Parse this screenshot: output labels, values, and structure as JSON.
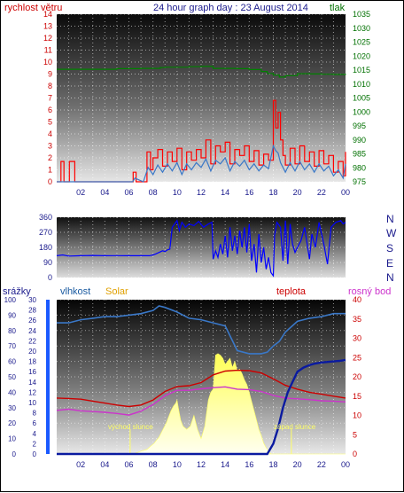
{
  "chart_data": [
    {
      "type": "line",
      "title": "24 hour graph day : 23 August 2014",
      "ylabel_left": "rychlost větru",
      "ylabel_right": "tlak",
      "ylim_left": [
        0,
        14
      ],
      "ylim_right": [
        975,
        1035
      ],
      "yticks_left": [
        "0",
        "1",
        "2",
        "3",
        "4",
        "5",
        "6",
        "7",
        "8",
        "9",
        "10",
        "11",
        "12",
        "13",
        "14"
      ],
      "yticks_right": [
        "975",
        "980",
        "985",
        "990",
        "995",
        "1000",
        "1005",
        "1010",
        "1015",
        "1020",
        "1025",
        "1030",
        "1035"
      ],
      "xticks": [
        "02",
        "04",
        "06",
        "08",
        "10",
        "12",
        "14",
        "16",
        "18",
        "20",
        "22",
        "00"
      ],
      "grid": true,
      "colors": {
        "wind": "#ff0000",
        "wind_avg": "#3a78c8",
        "pressure": "#008000"
      },
      "series": [
        {
          "key": "gust",
          "x": [
            0,
            0.3,
            0.35,
            0.6,
            0.65,
            1.0,
            1.05,
            1.5,
            1.55,
            6.3,
            6.35,
            6.6,
            6.65,
            7.2,
            7.5,
            7.8,
            8.0,
            8.4,
            8.8,
            9.2,
            9.6,
            10.0,
            10.4,
            10.8,
            11.2,
            11.6,
            12.0,
            12.4,
            12.8,
            13.2,
            13.6,
            14.0,
            14.4,
            14.8,
            15.2,
            15.6,
            16.0,
            16.4,
            16.8,
            17.2,
            17.6,
            18.0,
            18.2,
            18.4,
            18.6,
            18.8,
            19.0,
            19.4,
            19.8,
            20.2,
            20.6,
            21.0,
            21.4,
            21.8,
            22.2,
            22.6,
            23.0,
            23.4,
            23.8,
            24.0
          ],
          "values": [
            0,
            0,
            1.7,
            0,
            0,
            0,
            1.7,
            0,
            0,
            0,
            0.8,
            0,
            0,
            0,
            2.5,
            1,
            2,
            2.7,
            1.3,
            2.5,
            1.7,
            2.8,
            1,
            2.5,
            1.8,
            2.7,
            2,
            3.5,
            1.5,
            3,
            2.5,
            3.3,
            1.5,
            2.7,
            2.2,
            3,
            1.7,
            2.6,
            1.4,
            2.3,
            1.8,
            6.8,
            4.5,
            5.8,
            3.5,
            2.2,
            1.4,
            2.8,
            1.5,
            3,
            1.7,
            2.5,
            1.3,
            2.6,
            1.5,
            2.2,
            0.8,
            1.7,
            0.5,
            2.5
          ]
        },
        {
          "key": "average",
          "x": [
            0,
            1,
            2,
            6.3,
            6.5,
            7.2,
            7.6,
            8.0,
            8.4,
            8.8,
            9.2,
            9.6,
            10.0,
            10.4,
            10.8,
            11.2,
            11.6,
            12.0,
            12.4,
            12.8,
            13.2,
            13.6,
            14.0,
            14.4,
            14.8,
            15.2,
            15.6,
            16.0,
            16.4,
            16.8,
            17.2,
            17.6,
            18.0,
            18.2,
            18.4,
            18.6,
            18.8,
            19.0,
            19.4,
            19.8,
            20.2,
            20.6,
            21.0,
            21.4,
            21.8,
            22.2,
            22.6,
            23.0,
            23.4,
            23.8,
            24.0
          ],
          "values": [
            0,
            0,
            0,
            0,
            0.3,
            0,
            1.2,
            0.6,
            1.4,
            0.8,
            1.5,
            0.9,
            1.6,
            0.6,
            1.5,
            1,
            1.6,
            1.2,
            1.9,
            0.9,
            1.8,
            1.5,
            2,
            0.9,
            1.7,
            1.3,
            1.8,
            1,
            1.5,
            0.9,
            1.4,
            1.1,
            3,
            2.6,
            2.4,
            1.6,
            1.2,
            0.8,
            1.6,
            0.9,
            1.7,
            1,
            1.5,
            0.8,
            1.5,
            0.9,
            1.3,
            0.5,
            1,
            0.3,
            1.5
          ]
        },
        {
          "key": "pressure",
          "x": [
            0,
            4,
            5,
            6,
            7,
            8,
            8.6,
            9,
            10,
            11,
            12,
            12.5,
            13,
            15,
            16,
            17,
            17.5,
            18,
            18.5,
            19,
            20,
            21,
            22,
            23,
            24
          ],
          "values": [
            1015.3,
            1015.3,
            1015.5,
            1015.5,
            1015.6,
            1015.6,
            1015.9,
            1016,
            1016,
            1016.2,
            1016.3,
            1016.3,
            1015.6,
            1015.5,
            1015.2,
            1014.5,
            1013.8,
            1013.2,
            1012.5,
            1013,
            1013.7,
            1013.6,
            1013.5,
            1013.4,
            1013.3
          ]
        }
      ]
    },
    {
      "type": "line",
      "ylim": [
        0,
        360
      ],
      "yticks": [
        "0",
        "90",
        "180",
        "270",
        "360"
      ],
      "compass_labels": [
        "N",
        "W",
        "S",
        "E",
        "N"
      ],
      "xticks": [
        "02",
        "04",
        "06",
        "08",
        "10",
        "12",
        "14",
        "16",
        "18",
        "20",
        "22",
        "00"
      ],
      "grid": true,
      "colors": {
        "direction": "#0000ff"
      },
      "series": [
        {
          "key": "direction",
          "x": [
            0,
            0.5,
            1,
            2,
            3,
            4,
            5,
            6,
            7,
            7.7,
            8,
            8.2,
            8.5,
            8.8,
            9.0,
            9.2,
            9.4,
            9.6,
            9.8,
            10.0,
            10.2,
            10.4,
            10.7,
            11.0,
            11.4,
            11.8,
            12.2,
            12.6,
            12.9,
            13.0,
            13.2,
            13.4,
            13.6,
            13.8,
            14.0,
            14.2,
            14.4,
            14.6,
            14.8,
            15.0,
            15.2,
            15.4,
            15.6,
            15.8,
            16.0,
            16.2,
            16.4,
            16.6,
            16.8,
            17.0,
            17.2,
            17.4,
            17.6,
            17.8,
            18.0,
            18.1,
            18.3,
            18.6,
            18.8,
            19.0,
            19.2,
            19.4,
            19.6,
            19.8,
            20.0,
            20.3,
            20.6,
            21.0,
            21.2,
            21.5,
            21.8,
            22.2,
            22.5,
            22.8,
            23.2,
            23.6,
            23.8,
            24.0
          ],
          "values": [
            130,
            135,
            128,
            130,
            132,
            130,
            131,
            130,
            130,
            130,
            135,
            140,
            150,
            160,
            155,
            165,
            170,
            300,
            320,
            340,
            280,
            330,
            300,
            320,
            310,
            335,
            300,
            320,
            330,
            110,
            160,
            120,
            200,
            140,
            250,
            120,
            300,
            160,
            250,
            140,
            280,
            180,
            300,
            150,
            320,
            100,
            200,
            30,
            260,
            90,
            180,
            50,
            120,
            30,
            10,
            250,
            330,
            300,
            100,
            340,
            80,
            320,
            200,
            150,
            180,
            220,
            300,
            110,
            260,
            180,
            330,
            200,
            80,
            300,
            330,
            340,
            320,
            330
          ]
        }
      ]
    },
    {
      "type": "area",
      "legend": [
        "srážky",
        "vlhkost",
        "Solar",
        "teplota",
        "rosný bod"
      ],
      "colors": {
        "srazky": "#0000ff",
        "vlhkost": "#3a78c8",
        "solar": "#ffff33",
        "teplota": "#cc0000",
        "rosny_bod": "#cc33cc"
      },
      "yticks_humidity": [
        "0",
        "10",
        "20",
        "30",
        "40",
        "50",
        "60",
        "70",
        "80",
        "90",
        "100"
      ],
      "yticks_rain": [
        "0",
        "2",
        "4",
        "6",
        "8",
        "10",
        "12",
        "14",
        "16",
        "18",
        "20",
        "22",
        "24",
        "26",
        "28",
        "30"
      ],
      "yticks_temp": [
        "0",
        "5",
        "10",
        "15",
        "20",
        "25",
        "30",
        "35",
        "40"
      ],
      "ylim_humidity": [
        0,
        100
      ],
      "ylim_rain": [
        0,
        30
      ],
      "ylim_temp": [
        0,
        40
      ],
      "xticks": [
        "02",
        "04",
        "06",
        "08",
        "10",
        "12",
        "14",
        "16",
        "18",
        "20",
        "22",
        "00"
      ],
      "grid": true,
      "annotations": [
        {
          "text": "východ slunce",
          "x": 6.1
        },
        {
          "text": "západ slunce",
          "x": 19.5
        }
      ],
      "series": [
        {
          "key": "vlhkost",
          "x": [
            0,
            1,
            2,
            3,
            4,
            5,
            6,
            7,
            8,
            8.5,
            9,
            10,
            11,
            12,
            13,
            14,
            15,
            16,
            17,
            17.5,
            18,
            18.5,
            19,
            20,
            21,
            22,
            23,
            24
          ],
          "values": [
            85,
            85,
            87,
            88,
            89,
            89,
            90,
            91,
            93,
            96,
            95,
            92,
            88,
            87,
            85,
            83,
            67,
            65,
            65,
            66,
            70,
            73,
            79,
            86,
            88,
            89,
            91,
            91
          ]
        },
        {
          "key": "teplota",
          "x": [
            0,
            1,
            2,
            3,
            4,
            5,
            6,
            7,
            8,
            9,
            10,
            11,
            12,
            13,
            14,
            15,
            16,
            17,
            18,
            19,
            20,
            21,
            22,
            23,
            24
          ],
          "values": [
            14.5,
            14.4,
            14.2,
            13.7,
            13.2,
            12.7,
            12.3,
            12.7,
            14,
            16.2,
            17.5,
            17.7,
            18.5,
            20.5,
            21.5,
            21.7,
            21.6,
            21,
            19.5,
            17.8,
            16.8,
            16,
            15.5,
            15,
            14.5
          ]
        },
        {
          "key": "rosny_bod",
          "x": [
            0,
            1,
            2,
            3,
            4,
            5,
            6,
            7,
            8,
            9,
            10,
            11,
            12,
            13,
            14,
            15,
            16,
            17,
            18,
            19,
            20,
            21,
            22,
            23,
            24
          ],
          "values": [
            11.3,
            11.6,
            11.2,
            11,
            10.8,
            10.5,
            10.1,
            11.1,
            12.8,
            15.1,
            16.5,
            16.5,
            16.9,
            17.2,
            17.4,
            16.8,
            16.7,
            16.2,
            15.2,
            14.5,
            14.3,
            14.1,
            13.8,
            13.7,
            13.5
          ]
        },
        {
          "key": "srazky",
          "x": [
            0,
            14,
            17.5,
            18.0,
            18.4,
            18.8,
            19.2,
            19.6,
            20.0,
            20.5,
            21,
            21.5,
            22,
            22.5,
            23,
            23.5,
            24
          ],
          "values": [
            0,
            0,
            0,
            2,
            5,
            9,
            12,
            14,
            16,
            16.8,
            17.3,
            17.6,
            17.8,
            17.9,
            18,
            18.1,
            18.3
          ]
        },
        {
          "key": "solar",
          "x": [
            0,
            6.3,
            6.7,
            7.1,
            7.5,
            7.8,
            8.1,
            8.3,
            8.5,
            8.7,
            8.9,
            9.1,
            9.3,
            9.5,
            9.7,
            9.9,
            10.0,
            10.15,
            10.3,
            10.5,
            10.8,
            11.1,
            11.4,
            11.7,
            12.0,
            12.3,
            12.6,
            12.8,
            13.0,
            13.2,
            13.4,
            13.6,
            13.8,
            14.0,
            14.2,
            14.4,
            14.6,
            14.8,
            15.0,
            15.2,
            15.4,
            15.6,
            15.8,
            16.0,
            16.2,
            16.4,
            16.6,
            16.8,
            17.0,
            17.2,
            17.4,
            17.6,
            17.8,
            18.0,
            18.5,
            24
          ],
          "values": [
            0,
            0,
            1,
            2,
            3,
            5,
            7,
            9,
            11,
            14,
            17,
            20,
            24,
            28,
            31,
            33,
            35,
            28,
            22,
            18,
            16,
            18,
            25,
            16,
            10,
            18,
            35,
            40,
            42,
            64,
            65,
            64,
            62,
            58,
            60,
            62,
            56,
            60,
            54,
            55,
            52,
            48,
            45,
            40,
            34,
            28,
            22,
            16,
            12,
            7,
            4,
            2,
            0,
            0,
            0,
            0
          ]
        }
      ]
    }
  ]
}
